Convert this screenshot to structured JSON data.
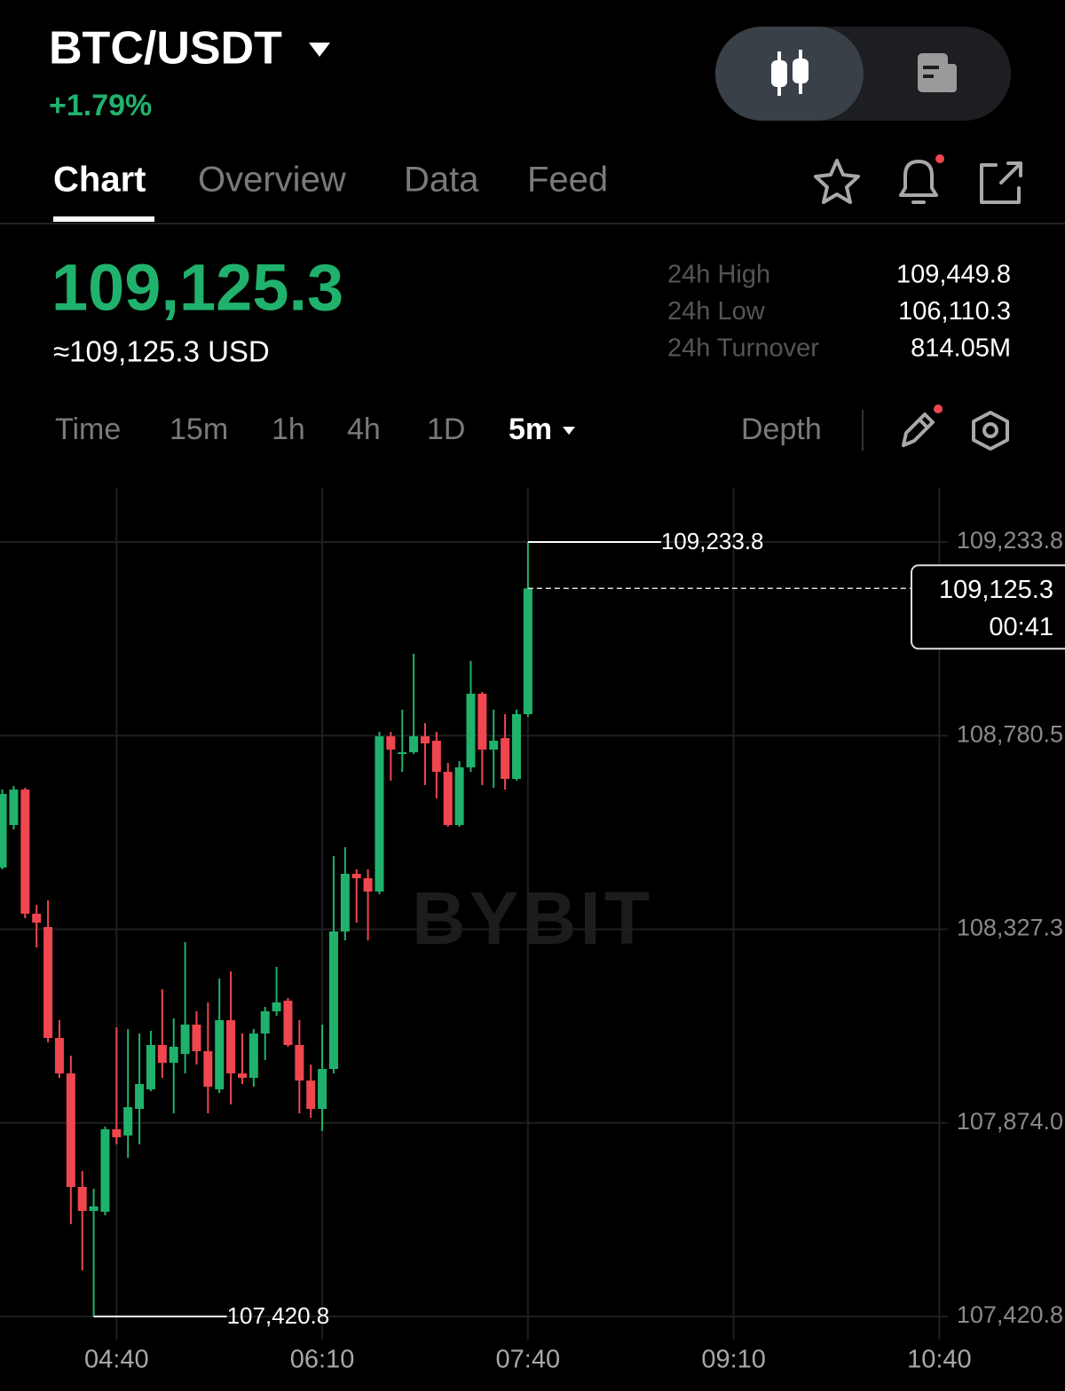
{
  "header": {
    "pair": "BTC/USDT",
    "change": "+1.79%"
  },
  "tabs": [
    "Chart",
    "Overview",
    "Data",
    "Feed"
  ],
  "price": {
    "last": "109,125.3",
    "usd": "≈109,125.3 USD"
  },
  "stats": [
    {
      "label": "24h High",
      "value": "109,449.8"
    },
    {
      "label": "24h Low",
      "value": "106,110.3"
    },
    {
      "label": "24h Turnover",
      "value": "814.05M"
    }
  ],
  "intervals": [
    "Time",
    "15m",
    "1h",
    "4h",
    "1D",
    "5m"
  ],
  "depth": "Depth",
  "chart_data": {
    "type": "candlestick",
    "watermark": "BYBIT",
    "up_color": "#20b26c",
    "down_color": "#f0464f",
    "x": [
      "03:50",
      "03:55",
      "04:00",
      "04:05",
      "04:10",
      "04:15",
      "04:20",
      "04:25",
      "04:30",
      "04:35",
      "04:40",
      "04:45",
      "04:50",
      "04:55",
      "05:00",
      "05:05",
      "05:10",
      "05:15",
      "05:20",
      "05:25",
      "05:30",
      "05:35",
      "05:40",
      "05:45",
      "05:50",
      "05:55",
      "06:00",
      "06:05",
      "06:10",
      "06:15",
      "06:20",
      "06:25",
      "06:30",
      "06:35",
      "06:40",
      "06:45",
      "06:50",
      "06:55",
      "07:00",
      "07:05",
      "07:10",
      "07:15",
      "07:20",
      "07:25",
      "07:30",
      "07:35",
      "07:40"
    ],
    "open": [
      108471.7,
      108571.3,
      108654.4,
      108363.7,
      108332.5,
      108072.9,
      107989.9,
      107724.0,
      107668.0,
      107665.9,
      107859.0,
      107844.5,
      107906.8,
      107952.5,
      108056.3,
      108014.8,
      108035.5,
      108104.1,
      108041.8,
      107952.5,
      108114.5,
      107989.9,
      107979.5,
      108083.3,
      108135.2,
      108160.1,
      108056.3,
      107973.2,
      107906.8,
      108000.2,
      108322.1,
      108457.1,
      108446.7,
      108415.6,
      108779.0,
      108737.5,
      108741.6,
      108779.0,
      108768.6,
      108695.9,
      108571.3,
      108706.3,
      108878.7,
      108747.9,
      108774.9,
      108679.3,
      108830.9
    ],
    "high": [
      108654.4,
      108662.7,
      108658.6,
      108384.4,
      108394.8,
      108114.5,
      108031.4,
      107761.4,
      107719.9,
      107865.3,
      108097.8,
      108093.7,
      108083.3,
      108089.5,
      108187.1,
      108118.6,
      108297.2,
      108135.2,
      108156.0,
      108212.1,
      108228.7,
      108083.3,
      108093.7,
      108145.6,
      108239.1,
      108166.4,
      108114.5,
      108010.6,
      108104.1,
      108498.6,
      108519.4,
      108467.5,
      108467.5,
      108789.4,
      108789.4,
      108841.3,
      108972.1,
      108810.2,
      108789.4,
      108716.7,
      108720.9,
      108955.5,
      108882.8,
      108841.3,
      108830.9,
      108841.3,
      109233.8
    ],
    "low": [
      108467.5,
      108560.9,
      108353.3,
      108284.7,
      108062.5,
      107979.5,
      107636.8,
      107528.8,
      107420.8,
      107657.6,
      107823.7,
      107792.6,
      107823.7,
      107948.3,
      107979.5,
      107896.4,
      107989.9,
      108010.6,
      107896.4,
      107944.2,
      107917.2,
      107964.9,
      107958.7,
      108021.0,
      108124.8,
      108052.2,
      107896.4,
      107886.0,
      107854.9,
      107989.9,
      108301.4,
      108342.9,
      108301.4,
      108409.4,
      108675.2,
      108695.9,
      108737.5,
      108664.8,
      108633.6,
      108567.2,
      108567.2,
      108695.9,
      108664.8,
      108658.6,
      108654.4,
      108675.2,
      108824.7
    ],
    "close": [
      108644.0,
      108654.4,
      108363.7,
      108342.9,
      108072.9,
      107989.9,
      107724.0,
      107668.0,
      107678.4,
      107859.0,
      107840.3,
      107910.9,
      107964.9,
      108056.3,
      108014.8,
      108052.2,
      108104.1,
      108041.8,
      107958.7,
      108114.5,
      107989.9,
      107979.5,
      108083.3,
      108135.2,
      108156.0,
      108056.3,
      107973.2,
      107906.8,
      108000.2,
      108322.1,
      108457.1,
      108446.7,
      108415.6,
      108779.0,
      108747.9,
      108741.6,
      108779.0,
      108762.4,
      108695.9,
      108571.3,
      108706.3,
      108878.7,
      108747.9,
      108768.6,
      108679.3,
      108830.9,
      109125.3
    ],
    "xlim": [
      "03:49",
      "11:35"
    ],
    "xticks": [
      "04:40",
      "06:10",
      "07:40",
      "09:10",
      "10:40"
    ],
    "ylim": [
      107366.8,
      109360.5
    ],
    "yticks": [
      {
        "value": 107420.8,
        "label": "107,420.8"
      },
      {
        "value": 107874.0,
        "label": "107,874.0"
      },
      {
        "value": 108327.3,
        "label": "108,327.3"
      },
      {
        "value": 108780.5,
        "label": "108,780.5"
      },
      {
        "value": 109233.8,
        "label": "109,233.8"
      }
    ],
    "grid": true,
    "annotations": [
      {
        "x": "07:40",
        "value": 109233.8,
        "label": "109,233.8"
      },
      {
        "x": "04:30",
        "value": 107420.8,
        "label": "107,420.8"
      }
    ],
    "last_price": {
      "value": 109125.3,
      "label": "109,125.3",
      "countdown": "00:41"
    }
  }
}
